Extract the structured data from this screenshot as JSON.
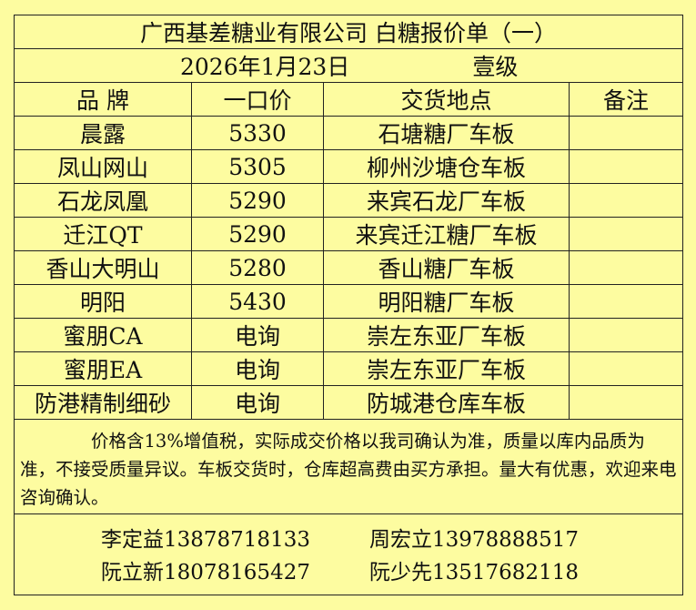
{
  "title": "广西基差糖业有限公司 白糖报价单（一）",
  "date": "2026年1月23日",
  "grade": "壹级",
  "headers": [
    "品 牌",
    "一口价",
    "交货地点",
    "备注"
  ],
  "rows": [
    {
      "brand": "晨露",
      "price": "5330",
      "location": "石塘糖厂车板",
      "remark": ""
    },
    {
      "brand": "凤山网山",
      "price": "5305",
      "location": "柳州沙塘仓车板",
      "remark": ""
    },
    {
      "brand": "石龙凤凰",
      "price": "5290",
      "location": "来宾石龙厂车板",
      "remark": ""
    },
    {
      "brand": "迁江QT",
      "price": "5290",
      "location": "来宾迁江糖厂车板",
      "remark": ""
    },
    {
      "brand": "香山大明山",
      "price": "5280",
      "location": "香山糖厂车板",
      "remark": ""
    },
    {
      "brand": "明阳",
      "price": "5430",
      "location": "明阳糖厂车板",
      "remark": ""
    },
    {
      "brand": "蜜朋CA",
      "price": "电询",
      "location": "崇左东亚厂车板",
      "remark": ""
    },
    {
      "brand": "蜜朋EA",
      "price": "电询",
      "location": "崇左东亚厂车板",
      "remark": ""
    },
    {
      "brand": "防港精制细砂",
      "price": "电询",
      "location": "防城港仓库车板",
      "remark": ""
    }
  ],
  "note": "价格含13%增值税，实际成交价格以我司确认为准，质量以库内品质为准，不接受质量异议。车板交货时，仓库超高费由买方承担。量大有优惠，欢迎来电咨询确认。",
  "contacts": [
    [
      "李定益13878718133",
      "周宏立13978888517"
    ],
    [
      "阮立新18078165427",
      "阮少先13517682118"
    ]
  ]
}
